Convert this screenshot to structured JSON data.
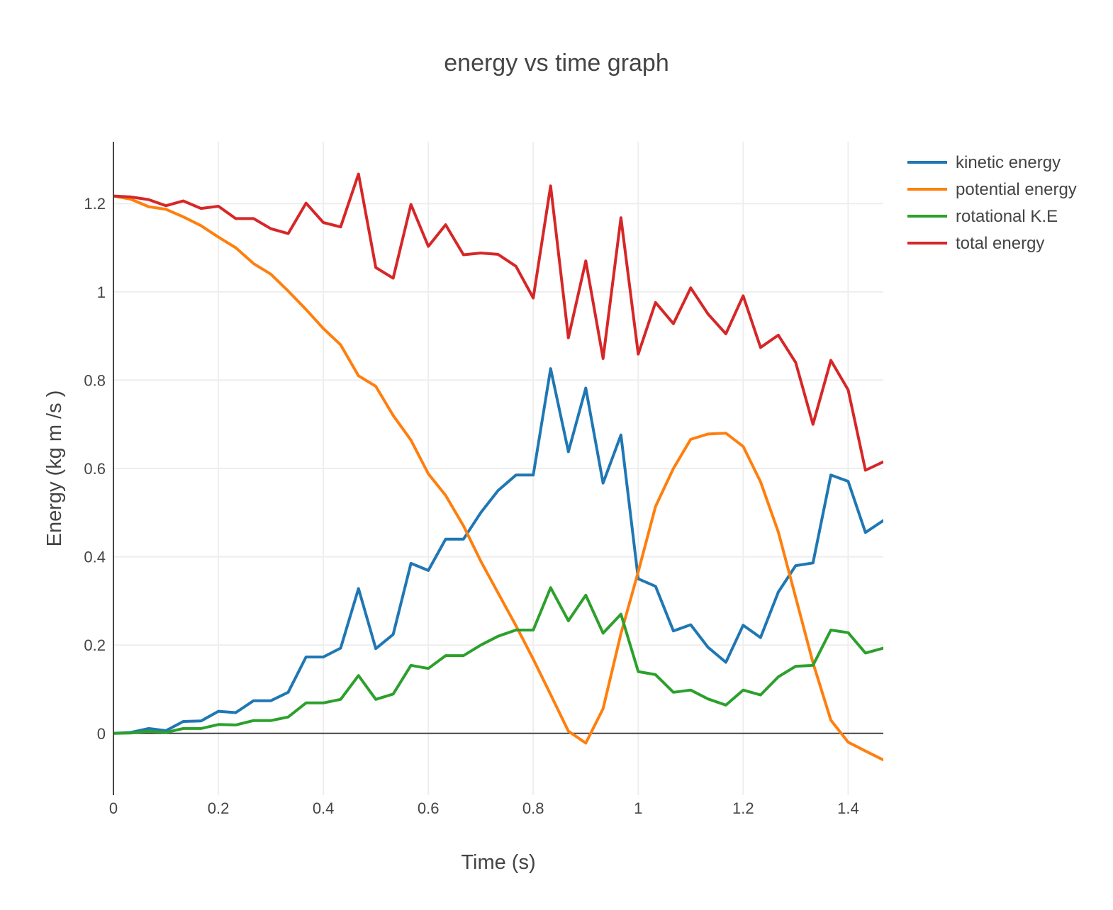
{
  "chart_data": {
    "type": "line",
    "title": "energy vs time graph",
    "xlabel": "Time (s)",
    "ylabel": "Energy (kg m /s  )",
    "xlim": [
      0,
      1.467
    ],
    "ylim": [
      -0.14,
      1.34
    ],
    "x_ticks": [
      0,
      0.2,
      0.4,
      0.6,
      0.8,
      1,
      1.2,
      1.4
    ],
    "x_tick_labels": [
      "0",
      "0.2",
      "0.4",
      "0.6",
      "0.8",
      "1",
      "1.2",
      "1.4"
    ],
    "y_ticks": [
      0,
      0.2,
      0.4,
      0.6,
      0.8,
      1,
      1.2
    ],
    "y_tick_labels": [
      "0",
      "0.2",
      "0.4",
      "0.6",
      "0.8",
      "1",
      "1.2"
    ],
    "grid": true,
    "legend_position": "top-right",
    "x": [
      0,
      0.033,
      0.067,
      0.1,
      0.133,
      0.167,
      0.2,
      0.233,
      0.267,
      0.3,
      0.333,
      0.367,
      0.4,
      0.433,
      0.467,
      0.5,
      0.533,
      0.567,
      0.6,
      0.633,
      0.667,
      0.7,
      0.733,
      0.767,
      0.8,
      0.833,
      0.867,
      0.9,
      0.933,
      0.967,
      1.0,
      1.033,
      1.067,
      1.1,
      1.133,
      1.167,
      1.2,
      1.233,
      1.267,
      1.3,
      1.333,
      1.367,
      1.4,
      1.433,
      1.467
    ],
    "series": [
      {
        "name": "kinetic energy",
        "color": "#1f77b4",
        "values": [
          0,
          0.002,
          0.011,
          0.006,
          0.027,
          0.028,
          0.05,
          0.047,
          0.074,
          0.074,
          0.093,
          0.173,
          0.173,
          0.193,
          0.328,
          0.192,
          0.224,
          0.385,
          0.369,
          0.44,
          0.44,
          0.5,
          0.55,
          0.585,
          0.585,
          0.826,
          0.638,
          0.782,
          0.567,
          0.676,
          0.35,
          0.333,
          0.232,
          0.246,
          0.195,
          0.161,
          0.245,
          0.217,
          0.32,
          0.38,
          0.386,
          0.585,
          0.571,
          0.455,
          0.482
        ]
      },
      {
        "name": "potential energy",
        "color": "#ff7f0e",
        "values": [
          1.217,
          1.21,
          1.193,
          1.187,
          1.17,
          1.15,
          1.124,
          1.1,
          1.064,
          1.04,
          1.002,
          0.96,
          0.917,
          0.88,
          0.81,
          0.786,
          0.72,
          0.664,
          0.588,
          0.539,
          0.47,
          0.39,
          0.318,
          0.244,
          0.168,
          0.088,
          0.005,
          -0.022,
          0.056,
          0.226,
          0.366,
          0.514,
          0.6,
          0.666,
          0.678,
          0.68,
          0.65,
          0.57,
          0.456,
          0.308,
          0.16,
          0.03,
          -0.02,
          -0.04,
          -0.06
        ]
      },
      {
        "name": "rotational K.E",
        "color": "#2ca02c",
        "values": [
          0,
          0.001,
          0.005,
          0.002,
          0.011,
          0.011,
          0.02,
          0.019,
          0.029,
          0.029,
          0.037,
          0.069,
          0.069,
          0.077,
          0.131,
          0.077,
          0.089,
          0.154,
          0.147,
          0.176,
          0.176,
          0.2,
          0.22,
          0.234,
          0.234,
          0.33,
          0.255,
          0.313,
          0.227,
          0.27,
          0.14,
          0.133,
          0.093,
          0.098,
          0.078,
          0.064,
          0.098,
          0.087,
          0.128,
          0.152,
          0.154,
          0.234,
          0.228,
          0.182,
          0.193
        ]
      },
      {
        "name": "total energy",
        "color": "#d62728",
        "values": [
          1.217,
          1.215,
          1.209,
          1.195,
          1.206,
          1.189,
          1.194,
          1.166,
          1.166,
          1.143,
          1.132,
          1.201,
          1.157,
          1.147,
          1.267,
          1.055,
          1.031,
          1.198,
          1.103,
          1.152,
          1.084,
          1.088,
          1.085,
          1.058,
          0.986,
          1.24,
          0.896,
          1.07,
          0.849,
          1.168,
          0.859,
          0.976,
          0.928,
          1.009,
          0.95,
          0.905,
          0.991,
          0.874,
          0.902,
          0.84,
          0.7,
          0.845,
          0.778,
          0.596,
          0.615
        ]
      }
    ]
  }
}
